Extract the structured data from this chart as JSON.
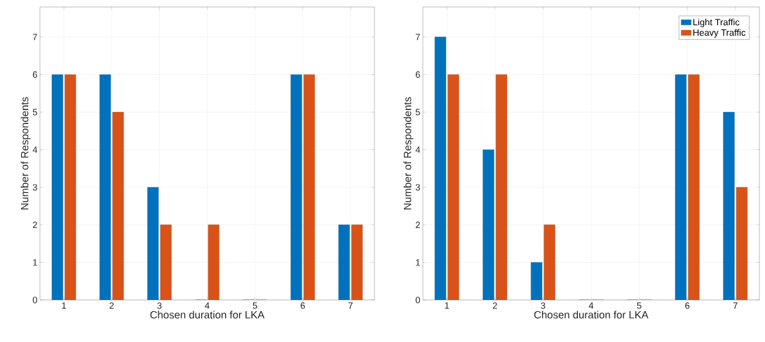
{
  "chart_data": [
    {
      "type": "bar",
      "categories": [
        "1",
        "2",
        "3",
        "4",
        "5",
        "6",
        "7"
      ],
      "xlabel": "Chosen duration for LKA",
      "ylabel": "Number of Respondents",
      "ylim": [
        0,
        7.8
      ],
      "yticks": [
        0,
        1,
        2,
        3,
        4,
        5,
        6,
        7
      ],
      "grid": true,
      "series": [
        {
          "color": "#0072bd",
          "values": [
            6,
            6,
            3,
            0,
            0,
            6,
            2
          ]
        },
        {
          "color": "#d95319",
          "values": [
            6,
            5,
            2,
            2,
            0,
            6,
            2
          ]
        }
      ]
    },
    {
      "type": "bar",
      "categories": [
        "1",
        "2",
        "3",
        "4",
        "5",
        "6",
        "7"
      ],
      "xlabel": "Chosen duration for LKA",
      "ylabel": "Number of Respondents",
      "ylim": [
        0,
        7.8
      ],
      "yticks": [
        0,
        1,
        2,
        3,
        4,
        5,
        6,
        7
      ],
      "grid": true,
      "legend": "top right",
      "series": [
        {
          "name": "Light Traffic",
          "color": "#0072bd",
          "values": [
            7,
            4,
            1,
            0,
            0,
            6,
            5
          ]
        },
        {
          "name": "Heavy Traffic",
          "color": "#d95319",
          "values": [
            6,
            6,
            2,
            0,
            0,
            6,
            3
          ]
        }
      ]
    }
  ]
}
